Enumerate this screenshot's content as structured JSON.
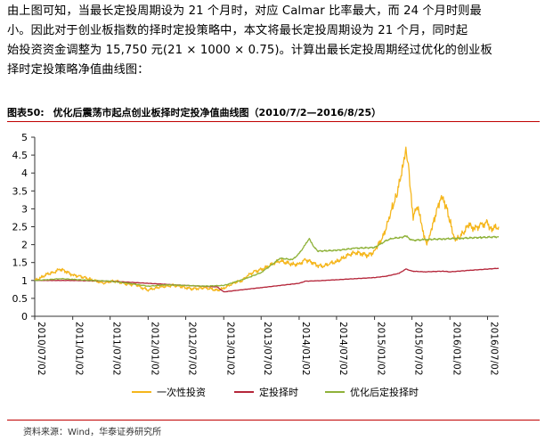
{
  "paragraph": {
    "line1": "由上图可知，当最长定投周期设为 21 个月时，对应 Calmar 比率最大，而 24 个月时则最",
    "line2": "小。因此对于创业板指数的择时定投策略中，本文将最长定投周期设为 21 个月，同时起",
    "line3": "始投资资金调整为 15,750 元(21 × 1000 × 0.75)。计算出最长定投周期经过优化的创业板",
    "line4": "择时定投策略净值曲线图："
  },
  "figure": {
    "number": "图表50:",
    "title": "优化后震荡市起点创业板择时定投净值曲线图（2010/7/2—2016/8/25）"
  },
  "source": "资料来源：Wind，华泰证券研究所",
  "colors": {
    "series1": "#f5b61c",
    "series2": "#b5263a",
    "series3": "#8fb23a",
    "rule": "#c00000"
  },
  "chart_data": {
    "type": "line",
    "title": "",
    "ylim": [
      0,
      5
    ],
    "yticks": [
      "0",
      "0.5",
      "1",
      "1.5",
      "2",
      "2.5",
      "3",
      "3.5",
      "4",
      "4.5",
      "5"
    ],
    "xlim": [
      "2010/07/02",
      "2016/08/25"
    ],
    "xticks": [
      "2010/07/02",
      "2011/01/02",
      "2011/07/02",
      "2012/01/02",
      "2012/07/02",
      "2013/01/02",
      "2013/07/02",
      "2014/01/02",
      "2014/07/02",
      "2015/01/02",
      "2015/07/02",
      "2016/01/02",
      "2016/07/02"
    ],
    "grid": false,
    "legend_position": "bottom",
    "series": [
      {
        "name": "一次性投资",
        "color": "#f5b61c",
        "points": [
          [
            "2010/07/02",
            1.0
          ],
          [
            "2010/08/02",
            1.08
          ],
          [
            "2010/09/01",
            1.18
          ],
          [
            "2010/10/01",
            1.22
          ],
          [
            "2010/11/01",
            1.32
          ],
          [
            "2010/12/01",
            1.25
          ],
          [
            "2011/01/02",
            1.15
          ],
          [
            "2011/02/01",
            1.12
          ],
          [
            "2011/03/01",
            1.08
          ],
          [
            "2011/04/01",
            1.02
          ],
          [
            "2011/05/01",
            0.97
          ],
          [
            "2011/06/01",
            0.93
          ],
          [
            "2011/07/02",
            0.97
          ],
          [
            "2011/08/01",
            0.98
          ],
          [
            "2011/09/01",
            0.93
          ],
          [
            "2011/10/01",
            0.88
          ],
          [
            "2011/11/01",
            0.9
          ],
          [
            "2011/12/01",
            0.8
          ],
          [
            "2012/01/02",
            0.74
          ],
          [
            "2012/02/01",
            0.78
          ],
          [
            "2012/03/01",
            0.82
          ],
          [
            "2012/04/01",
            0.84
          ],
          [
            "2012/05/01",
            0.86
          ],
          [
            "2012/06/01",
            0.84
          ],
          [
            "2012/07/02",
            0.8
          ],
          [
            "2012/08/01",
            0.77
          ],
          [
            "2012/09/01",
            0.78
          ],
          [
            "2012/10/01",
            0.8
          ],
          [
            "2012/11/01",
            0.76
          ],
          [
            "2012/12/01",
            0.72
          ],
          [
            "2013/01/02",
            0.78
          ],
          [
            "2013/02/01",
            0.88
          ],
          [
            "2013/03/01",
            0.95
          ],
          [
            "2013/04/01",
            1.0
          ],
          [
            "2013/05/01",
            1.15
          ],
          [
            "2013/06/01",
            1.25
          ],
          [
            "2013/07/02",
            1.3
          ],
          [
            "2013/08/01",
            1.38
          ],
          [
            "2013/09/01",
            1.48
          ],
          [
            "2013/10/01",
            1.55
          ],
          [
            "2013/11/01",
            1.5
          ],
          [
            "2013/12/01",
            1.45
          ],
          [
            "2014/01/02",
            1.45
          ],
          [
            "2014/02/01",
            1.58
          ],
          [
            "2014/03/01",
            1.52
          ],
          [
            "2014/04/01",
            1.42
          ],
          [
            "2014/05/01",
            1.4
          ],
          [
            "2014/06/01",
            1.48
          ],
          [
            "2014/07/02",
            1.52
          ],
          [
            "2014/08/01",
            1.62
          ],
          [
            "2014/09/01",
            1.72
          ],
          [
            "2014/10/01",
            1.78
          ],
          [
            "2014/11/01",
            1.75
          ],
          [
            "2014/12/01",
            1.7
          ],
          [
            "2015/01/02",
            1.8
          ],
          [
            "2015/01/20",
            2.0
          ],
          [
            "2015/02/15",
            2.25
          ],
          [
            "2015/03/10",
            2.7
          ],
          [
            "2015/04/01",
            3.1
          ],
          [
            "2015/04/20",
            3.4
          ],
          [
            "2015/05/10",
            3.9
          ],
          [
            "2015/05/25",
            4.3
          ],
          [
            "2015/06/03",
            4.55
          ],
          [
            "2015/06/15",
            4.2
          ],
          [
            "2015/06/25",
            3.6
          ],
          [
            "2015/07/08",
            2.8
          ],
          [
            "2015/07/20",
            3.05
          ],
          [
            "2015/08/05",
            2.9
          ],
          [
            "2015/08/20",
            2.45
          ],
          [
            "2015/09/01",
            2.15
          ],
          [
            "2015/09/15",
            2.05
          ],
          [
            "2015/10/01",
            2.4
          ],
          [
            "2015/10/20",
            2.75
          ],
          [
            "2015/11/10",
            3.15
          ],
          [
            "2015/11/25",
            3.3
          ],
          [
            "2015/12/15",
            3.05
          ],
          [
            "2016/01/05",
            2.6
          ],
          [
            "2016/01/25",
            2.15
          ],
          [
            "2016/02/15",
            2.2
          ],
          [
            "2016/03/10",
            2.35
          ],
          [
            "2016/04/01",
            2.55
          ],
          [
            "2016/05/01",
            2.45
          ],
          [
            "2016/06/01",
            2.55
          ],
          [
            "2016/07/01",
            2.6
          ],
          [
            "2016/07/20",
            2.45
          ],
          [
            "2016/08/25",
            2.5
          ]
        ]
      },
      {
        "name": "定投择时",
        "color": "#b5263a",
        "points": [
          [
            "2010/07/02",
            1.0
          ],
          [
            "2010/10/01",
            1.0
          ],
          [
            "2011/01/02",
            1.0
          ],
          [
            "2011/07/02",
            0.98
          ],
          [
            "2012/01/02",
            0.92
          ],
          [
            "2012/07/02",
            0.86
          ],
          [
            "2012/12/01",
            0.82
          ],
          [
            "2013/01/02",
            0.68
          ],
          [
            "2013/03/01",
            0.72
          ],
          [
            "2013/05/01",
            0.76
          ],
          [
            "2013/07/02",
            0.8
          ],
          [
            "2013/10/01",
            0.86
          ],
          [
            "2014/01/02",
            0.92
          ],
          [
            "2014/02/01",
            0.98
          ],
          [
            "2014/04/01",
            0.99
          ],
          [
            "2014/07/02",
            1.02
          ],
          [
            "2014/10/01",
            1.05
          ],
          [
            "2015/01/02",
            1.08
          ],
          [
            "2015/03/01",
            1.12
          ],
          [
            "2015/05/01",
            1.2
          ],
          [
            "2015/06/03",
            1.32
          ],
          [
            "2015/07/02",
            1.26
          ],
          [
            "2015/09/01",
            1.24
          ],
          [
            "2015/12/01",
            1.26
          ],
          [
            "2016/01/02",
            1.24
          ],
          [
            "2016/04/01",
            1.28
          ],
          [
            "2016/08/25",
            1.34
          ]
        ]
      },
      {
        "name": "优化后定投择时",
        "color": "#8fb23a",
        "points": [
          [
            "2010/07/02",
            1.0
          ],
          [
            "2010/09/01",
            1.02
          ],
          [
            "2010/11/01",
            1.05
          ],
          [
            "2011/01/02",
            1.03
          ],
          [
            "2011/04/01",
            1.0
          ],
          [
            "2011/07/02",
            0.98
          ],
          [
            "2011/10/01",
            0.92
          ],
          [
            "2012/01/02",
            0.84
          ],
          [
            "2012/04/01",
            0.88
          ],
          [
            "2012/07/02",
            0.86
          ],
          [
            "2012/10/01",
            0.84
          ],
          [
            "2013/01/02",
            0.86
          ],
          [
            "2013/03/01",
            0.96
          ],
          [
            "2013/05/01",
            1.08
          ],
          [
            "2013/07/02",
            1.22
          ],
          [
            "2013/08/01",
            1.35
          ],
          [
            "2013/09/01",
            1.48
          ],
          [
            "2013/10/01",
            1.62
          ],
          [
            "2013/12/01",
            1.58
          ],
          [
            "2014/01/02",
            1.75
          ],
          [
            "2014/02/01",
            2.0
          ],
          [
            "2014/02/20",
            2.18
          ],
          [
            "2014/03/10",
            1.98
          ],
          [
            "2014/04/01",
            1.82
          ],
          [
            "2014/07/02",
            1.84
          ],
          [
            "2014/10/01",
            1.9
          ],
          [
            "2015/01/02",
            1.92
          ],
          [
            "2015/02/01",
            2.02
          ],
          [
            "2015/03/01",
            2.12
          ],
          [
            "2015/04/01",
            2.18
          ],
          [
            "2015/05/15",
            2.2
          ],
          [
            "2015/06/03",
            2.24
          ],
          [
            "2015/07/02",
            2.12
          ],
          [
            "2015/09/01",
            2.14
          ],
          [
            "2015/12/01",
            2.16
          ],
          [
            "2016/03/01",
            2.18
          ],
          [
            "2016/06/01",
            2.2
          ],
          [
            "2016/08/25",
            2.22
          ]
        ]
      }
    ]
  }
}
